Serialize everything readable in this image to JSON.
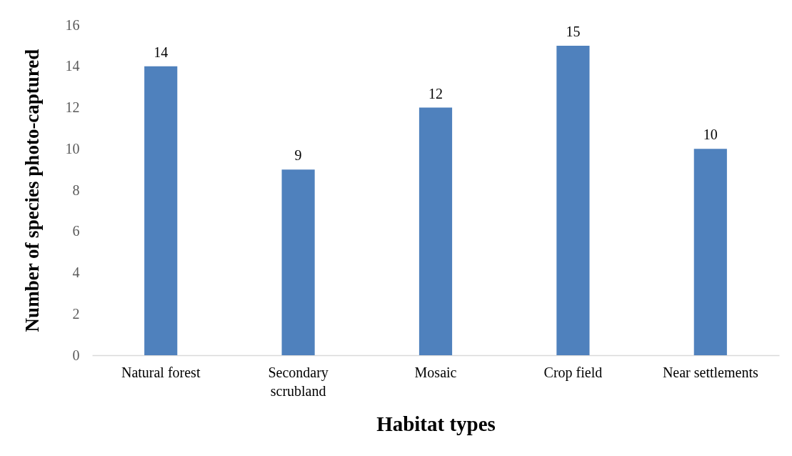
{
  "chart_data": {
    "type": "bar",
    "xlabel": "Habitat types",
    "ylabel": "Number of species photo-captured",
    "categories": [
      "Natural forest",
      "Secondary scrubland",
      "Mosaic",
      "Crop field",
      "Near settlements"
    ],
    "values": [
      14,
      9,
      12,
      15,
      10
    ],
    "color": "#4f81bd",
    "ylim": [
      0,
      16
    ],
    "yticks": [
      0,
      2,
      4,
      6,
      8,
      10,
      12,
      14,
      16
    ],
    "grid": false,
    "data_labels": true
  }
}
